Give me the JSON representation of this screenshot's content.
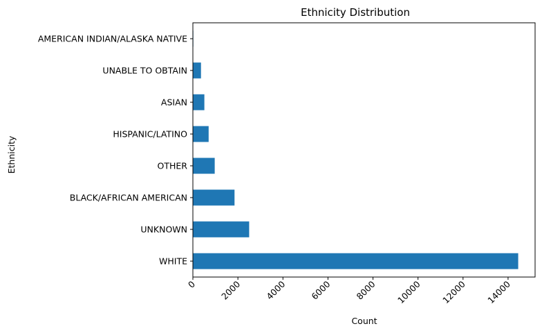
{
  "chart_data": {
    "type": "bar",
    "orientation": "horizontal",
    "title": "Ethnicity Distribution",
    "xlabel": "Count",
    "ylabel": "Ethnicity",
    "categories": [
      "WHITE",
      "UNKNOWN",
      "BLACK/AFRICAN AMERICAN",
      "OTHER",
      "HISPANIC/LATINO",
      "ASIAN",
      "UNABLE TO OBTAIN",
      "AMERICAN INDIAN/ALASKA NATIVE"
    ],
    "values": [
      14450,
      2500,
      1850,
      970,
      700,
      510,
      360,
      20
    ],
    "xlim": [
      0,
      15200
    ],
    "xticks": [
      0,
      2000,
      4000,
      6000,
      8000,
      10000,
      12000,
      14000
    ],
    "xtick_rotation": 45,
    "grid": false,
    "bar_color": "#1f77b4"
  }
}
